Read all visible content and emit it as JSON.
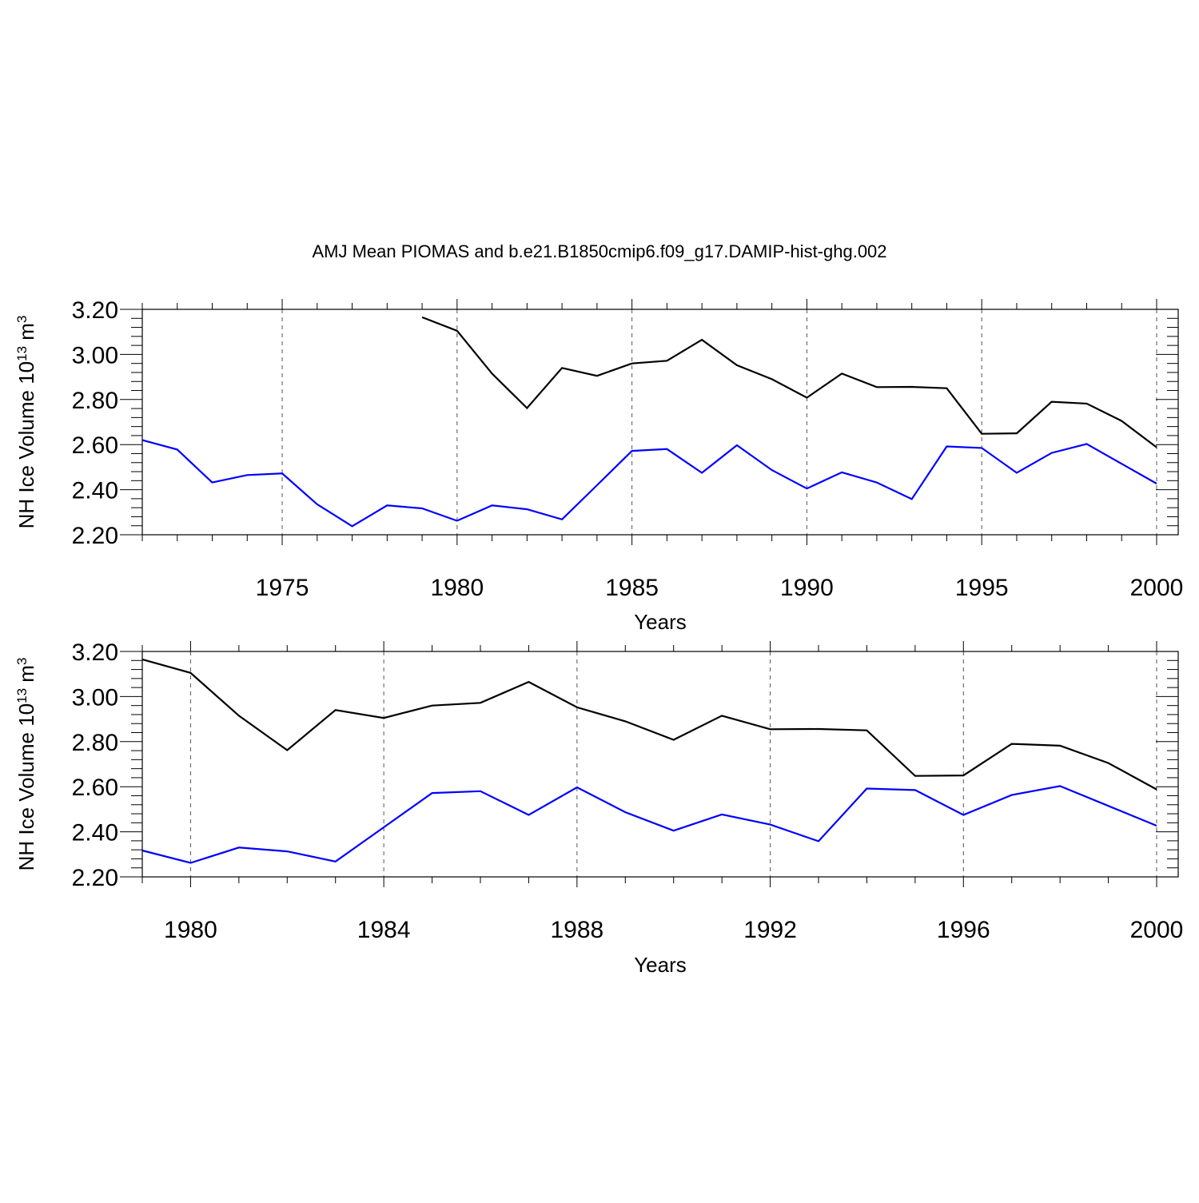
{
  "chart_data": [
    {
      "type": "line",
      "title": "AMJ Mean PIOMAS and b.e21.B1850cmip6.f09_g17.DAMIP-hist-ghg.002",
      "xlabel": "Years",
      "ylabel": {
        "base": "NH Ice Volume 10",
        "exponent1": "13",
        "unit": " m",
        "exponent2": "3"
      },
      "xlim": [
        1971,
        2000
      ],
      "ylim": [
        2.2,
        3.2
      ],
      "yticks": [
        "2.20",
        "2.40",
        "2.60",
        "2.80",
        "3.00",
        "3.20"
      ],
      "xticks": [
        "1975",
        "1980",
        "1985",
        "1990",
        "1995",
        "2000"
      ],
      "series": [
        {
          "name": "PIOMAS",
          "color": "#000000",
          "x": [
            1979,
            1980,
            1981,
            1982,
            1983,
            1984,
            1985,
            1986,
            1987,
            1988,
            1989,
            1990,
            1991,
            1992,
            1993,
            1994,
            1995,
            1996,
            1997,
            1998,
            1999,
            2000
          ],
          "values": [
            3.165,
            3.105,
            2.915,
            2.762,
            2.94,
            2.905,
            2.96,
            2.972,
            3.065,
            2.952,
            2.89,
            2.808,
            2.915,
            2.855,
            2.856,
            2.85,
            2.648,
            2.65,
            2.79,
            2.782,
            2.705,
            2.588
          ]
        },
        {
          "name": "b.e21.B1850cmip6.f09_g17.DAMIP-hist-ghg.002",
          "color": "#0000ff",
          "x": [
            1971,
            1972,
            1973,
            1974,
            1975,
            1976,
            1977,
            1978,
            1979,
            1980,
            1981,
            1982,
            1983,
            1984,
            1985,
            1986,
            1987,
            1988,
            1989,
            1990,
            1991,
            1992,
            1993,
            1994,
            1995,
            1996,
            1997,
            1998,
            1999,
            2000
          ],
          "values": [
            2.62,
            2.578,
            2.432,
            2.465,
            2.472,
            2.335,
            2.238,
            2.33,
            2.317,
            2.262,
            2.33,
            2.313,
            2.268,
            2.42,
            2.572,
            2.58,
            2.475,
            2.597,
            2.487,
            2.405,
            2.477,
            2.432,
            2.358,
            2.592,
            2.585,
            2.475,
            2.563,
            2.603,
            2.515,
            2.427
          ]
        }
      ]
    },
    {
      "type": "line",
      "xlabel": "Years",
      "ylabel": {
        "base": "NH Ice Volume 10",
        "exponent1": "13",
        "unit": " m",
        "exponent2": "3"
      },
      "xlim": [
        1979,
        2000
      ],
      "ylim": [
        2.2,
        3.2
      ],
      "yticks": [
        "2.20",
        "2.40",
        "2.60",
        "2.80",
        "3.00",
        "3.20"
      ],
      "xticks": [
        "1980",
        "1984",
        "1988",
        "1992",
        "1996",
        "2000"
      ],
      "series": [
        {
          "name": "PIOMAS",
          "color": "#000000",
          "x": [
            1979,
            1980,
            1981,
            1982,
            1983,
            1984,
            1985,
            1986,
            1987,
            1988,
            1989,
            1990,
            1991,
            1992,
            1993,
            1994,
            1995,
            1996,
            1997,
            1998,
            1999,
            2000
          ],
          "values": [
            3.165,
            3.105,
            2.915,
            2.762,
            2.94,
            2.905,
            2.96,
            2.972,
            3.065,
            2.952,
            2.89,
            2.808,
            2.915,
            2.855,
            2.856,
            2.85,
            2.648,
            2.65,
            2.79,
            2.782,
            2.705,
            2.588
          ]
        },
        {
          "name": "b.e21.B1850cmip6.f09_g17.DAMIP-hist-ghg.002",
          "color": "#0000ff",
          "x": [
            1979,
            1980,
            1981,
            1982,
            1983,
            1984,
            1985,
            1986,
            1987,
            1988,
            1989,
            1990,
            1991,
            1992,
            1993,
            1994,
            1995,
            1996,
            1997,
            1998,
            1999,
            2000
          ],
          "values": [
            2.317,
            2.262,
            2.33,
            2.313,
            2.268,
            2.42,
            2.572,
            2.58,
            2.475,
            2.597,
            2.487,
            2.405,
            2.477,
            2.432,
            2.358,
            2.592,
            2.585,
            2.475,
            2.563,
            2.603,
            2.515,
            2.427
          ]
        }
      ]
    }
  ]
}
